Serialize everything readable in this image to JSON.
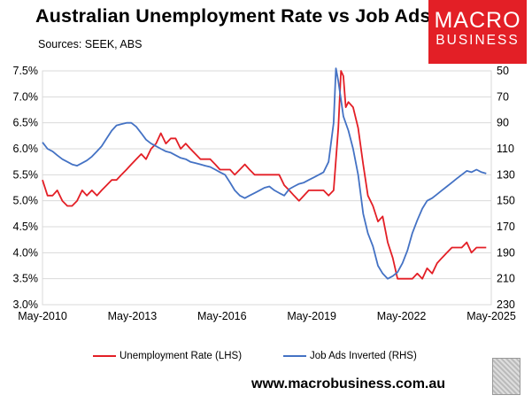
{
  "header": {
    "title": "Australian Unemployment Rate vs Job Ads",
    "sources": "Sources: SEEK, ABS"
  },
  "logo": {
    "line1": "MACRO",
    "line2": "BUSINESS",
    "color": "#e31f26"
  },
  "footer": {
    "url": "www.macrobusiness.com.au"
  },
  "chart_data": {
    "type": "line",
    "x_ticks": [
      "May-2010",
      "May-2013",
      "May-2016",
      "May-2019",
      "May-2022",
      "May-2025"
    ],
    "x_range": [
      2010.33,
      2025.5
    ],
    "y_left": {
      "label": "Unemployment Rate (LHS)",
      "range": [
        3.0,
        7.5
      ],
      "ticks": [
        "7.5%",
        "7.0%",
        "6.5%",
        "6.0%",
        "5.5%",
        "5.0%",
        "4.5%",
        "4.0%",
        "3.5%",
        "3.0%"
      ]
    },
    "y_right": {
      "label": "Job Ads Inverted (RHS)",
      "range": [
        230,
        50
      ],
      "inverted": true,
      "ticks": [
        "50",
        "70",
        "90",
        "110",
        "130",
        "150",
        "170",
        "190",
        "210",
        "230"
      ]
    },
    "grid": true,
    "legend_position": "bottom",
    "series": [
      {
        "name": "Unemployment Rate (LHS)",
        "axis": "left",
        "color": "#e31f26",
        "x": [
          2010.33,
          2010.5,
          2010.67,
          2010.83,
          2011.0,
          2011.17,
          2011.33,
          2011.5,
          2011.67,
          2011.83,
          2012.0,
          2012.17,
          2012.33,
          2012.5,
          2012.67,
          2012.83,
          2013.0,
          2013.17,
          2013.33,
          2013.5,
          2013.67,
          2013.83,
          2014.0,
          2014.17,
          2014.33,
          2014.5,
          2014.67,
          2014.83,
          2015.0,
          2015.17,
          2015.33,
          2015.5,
          2015.67,
          2015.83,
          2016.0,
          2016.17,
          2016.33,
          2016.5,
          2016.67,
          2016.83,
          2017.0,
          2017.17,
          2017.33,
          2017.5,
          2017.67,
          2017.83,
          2018.0,
          2018.17,
          2018.33,
          2018.5,
          2018.67,
          2018.83,
          2019.0,
          2019.17,
          2019.33,
          2019.5,
          2019.67,
          2019.83,
          2020.0,
          2020.17,
          2020.33,
          2020.42,
          2020.5,
          2020.58,
          2020.67,
          2020.83,
          2021.0,
          2021.17,
          2021.33,
          2021.5,
          2021.67,
          2021.83,
          2022.0,
          2022.17,
          2022.33,
          2022.5,
          2022.67,
          2022.83,
          2023.0,
          2023.17,
          2023.33,
          2023.5,
          2023.67,
          2023.83,
          2024.0,
          2024.17,
          2024.33,
          2024.5,
          2024.67,
          2024.83,
          2025.0,
          2025.17,
          2025.33
        ],
        "y": [
          5.4,
          5.1,
          5.1,
          5.2,
          5.0,
          4.9,
          4.9,
          5.0,
          5.2,
          5.1,
          5.2,
          5.1,
          5.2,
          5.3,
          5.4,
          5.4,
          5.5,
          5.6,
          5.7,
          5.8,
          5.9,
          5.8,
          6.0,
          6.1,
          6.3,
          6.1,
          6.2,
          6.2,
          6.0,
          6.1,
          6.0,
          5.9,
          5.8,
          5.8,
          5.8,
          5.7,
          5.6,
          5.6,
          5.6,
          5.5,
          5.6,
          5.7,
          5.6,
          5.5,
          5.5,
          5.5,
          5.5,
          5.5,
          5.5,
          5.3,
          5.2,
          5.1,
          5.0,
          5.1,
          5.2,
          5.2,
          5.2,
          5.2,
          5.1,
          5.2,
          6.4,
          7.5,
          7.4,
          6.8,
          6.9,
          6.8,
          6.4,
          5.7,
          5.1,
          4.9,
          4.6,
          4.7,
          4.2,
          3.9,
          3.5,
          3.5,
          3.5,
          3.5,
          3.6,
          3.5,
          3.7,
          3.6,
          3.8,
          3.9,
          4.0,
          4.1,
          4.1,
          4.1,
          4.2,
          4.0,
          4.1,
          4.1,
          4.1
        ]
      },
      {
        "name": "Job Ads Inverted (RHS)",
        "axis": "right",
        "color": "#4472c4",
        "x": [
          2010.33,
          2010.5,
          2010.67,
          2010.83,
          2011.0,
          2011.17,
          2011.33,
          2011.5,
          2011.67,
          2011.83,
          2012.0,
          2012.17,
          2012.33,
          2012.5,
          2012.67,
          2012.83,
          2013.0,
          2013.17,
          2013.33,
          2013.5,
          2013.67,
          2013.83,
          2014.0,
          2014.17,
          2014.33,
          2014.5,
          2014.67,
          2014.83,
          2015.0,
          2015.17,
          2015.33,
          2015.5,
          2015.67,
          2015.83,
          2016.0,
          2016.17,
          2016.33,
          2016.5,
          2016.67,
          2016.83,
          2017.0,
          2017.17,
          2017.33,
          2017.5,
          2017.67,
          2017.83,
          2018.0,
          2018.17,
          2018.33,
          2018.5,
          2018.67,
          2018.83,
          2019.0,
          2019.17,
          2019.33,
          2019.5,
          2019.67,
          2019.83,
          2020.0,
          2020.17,
          2020.25,
          2020.33,
          2020.42,
          2020.5,
          2020.67,
          2020.83,
          2021.0,
          2021.17,
          2021.33,
          2021.5,
          2021.67,
          2021.83,
          2022.0,
          2022.17,
          2022.33,
          2022.5,
          2022.67,
          2022.83,
          2023.0,
          2023.17,
          2023.33,
          2023.5,
          2023.67,
          2023.83,
          2024.0,
          2024.17,
          2024.33,
          2024.5,
          2024.67,
          2024.83,
          2025.0,
          2025.17,
          2025.33
        ],
        "y": [
          105,
          110,
          112,
          115,
          118,
          120,
          122,
          123,
          121,
          119,
          116,
          112,
          108,
          102,
          96,
          92,
          91,
          90,
          90,
          93,
          98,
          103,
          106,
          108,
          110,
          112,
          113,
          115,
          117,
          118,
          120,
          121,
          122,
          123,
          124,
          126,
          128,
          130,
          136,
          142,
          146,
          148,
          146,
          144,
          142,
          140,
          139,
          142,
          144,
          146,
          141,
          139,
          137,
          136,
          134,
          132,
          130,
          128,
          120,
          90,
          48,
          58,
          72,
          85,
          96,
          110,
          130,
          160,
          175,
          185,
          200,
          206,
          210,
          208,
          205,
          198,
          188,
          175,
          165,
          156,
          150,
          148,
          145,
          142,
          139,
          136,
          133,
          130,
          127,
          128,
          126,
          128,
          129
        ]
      }
    ]
  }
}
